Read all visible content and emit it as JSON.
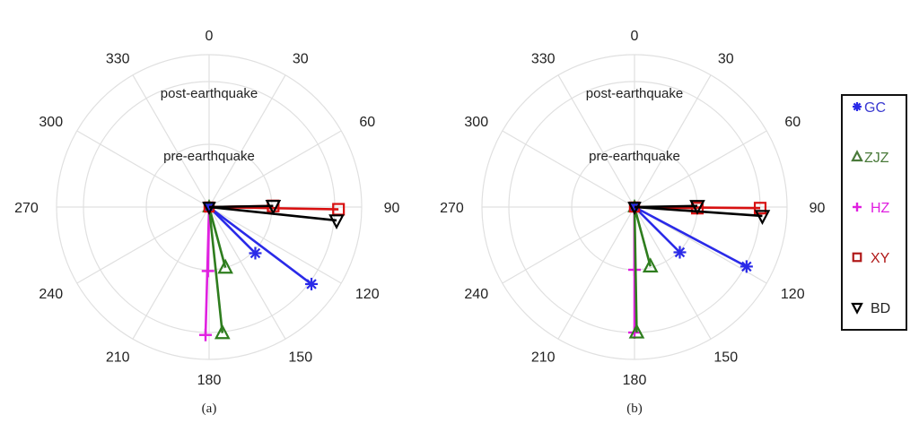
{
  "colors": {
    "GC": "#2a2ae8",
    "ZJZ": "#2e7d1e",
    "HZ": "#e020e0",
    "XY": "#d81010",
    "BD": "#000000",
    "grid": "#e0e0e0"
  },
  "legend": [
    {
      "name": "GC",
      "marker": "asterisk",
      "text_color": "#3a3ad0"
    },
    {
      "name": "ZJZ",
      "marker": "triangle-up",
      "text_color": "#4a7a3a"
    },
    {
      "name": "HZ",
      "marker": "plus",
      "text_color": "#e020e0"
    },
    {
      "name": "XY",
      "marker": "square",
      "text_color": "#b01818"
    },
    {
      "name": "BD",
      "marker": "triangle-down",
      "text_color": "#222222"
    }
  ],
  "chart_data": [
    {
      "type": "polar",
      "caption": "(a)",
      "theta_ticks": [
        "0",
        "30",
        "60",
        "90",
        "120",
        "150",
        "180",
        "210",
        "240",
        "270",
        "300",
        "330"
      ],
      "theta_direction": "clockwise, zero at top",
      "rlim": [
        0,
        1.2
      ],
      "ring_labels": [
        {
          "r": 0.5,
          "text": "pre-earthquake"
        },
        {
          "r": 1.0,
          "text": "post-earthquake"
        }
      ],
      "series": [
        {
          "name": "GC",
          "points": [
            {
              "label": "pre",
              "theta": 135,
              "r": 0.52
            },
            {
              "label": "post",
              "theta": 127,
              "r": 1.02
            }
          ]
        },
        {
          "name": "ZJZ",
          "points": [
            {
              "label": "pre",
              "theta": 165,
              "r": 0.5
            },
            {
              "label": "post",
              "theta": 174,
              "r": 1.01
            }
          ]
        },
        {
          "name": "HZ",
          "points": [
            {
              "label": "pre",
              "theta": 181,
              "r": 0.51
            },
            {
              "label": "post",
              "theta": 181.6,
              "r": 1.02
            }
          ]
        },
        {
          "name": "XY",
          "points": [
            {
              "label": "pre",
              "theta": 89,
              "r": 0.51
            },
            {
              "label": "post",
              "theta": 91,
              "r": 1.03
            }
          ]
        },
        {
          "name": "BD",
          "points": [
            {
              "label": "pre",
              "theta": 89,
              "r": 0.51
            },
            {
              "label": "post",
              "theta": 96,
              "r": 1.02
            }
          ]
        }
      ]
    },
    {
      "type": "polar",
      "caption": "(b)",
      "theta_ticks": [
        "0",
        "30",
        "60",
        "90",
        "120",
        "150",
        "180",
        "210",
        "240",
        "270",
        "300",
        "330"
      ],
      "theta_direction": "clockwise, zero at top",
      "rlim": [
        0,
        1.2
      ],
      "ring_labels": [
        {
          "r": 0.5,
          "text": "pre-earthquake"
        },
        {
          "r": 1.0,
          "text": "post-earthquake"
        }
      ],
      "series": [
        {
          "name": "GC",
          "points": [
            {
              "label": "pre",
              "theta": 135,
              "r": 0.51
            },
            {
              "label": "post",
              "theta": 118,
              "r": 1.01
            }
          ]
        },
        {
          "name": "ZJZ",
          "points": [
            {
              "label": "pre",
              "theta": 165,
              "r": 0.49
            },
            {
              "label": "post",
              "theta": 179,
              "r": 1.0
            }
          ]
        },
        {
          "name": "HZ",
          "points": [
            {
              "label": "pre",
              "theta": 180,
              "r": 0.5
            },
            {
              "label": "post",
              "theta": 180,
              "r": 1.0
            }
          ]
        },
        {
          "name": "XY",
          "points": [
            {
              "label": "pre",
              "theta": 91,
              "r": 0.5
            },
            {
              "label": "post",
              "theta": 90.5,
              "r": 1.0
            }
          ]
        },
        {
          "name": "BD",
          "points": [
            {
              "label": "pre",
              "theta": 89,
              "r": 0.5
            },
            {
              "label": "post",
              "theta": 94,
              "r": 1.02
            }
          ]
        }
      ]
    }
  ]
}
